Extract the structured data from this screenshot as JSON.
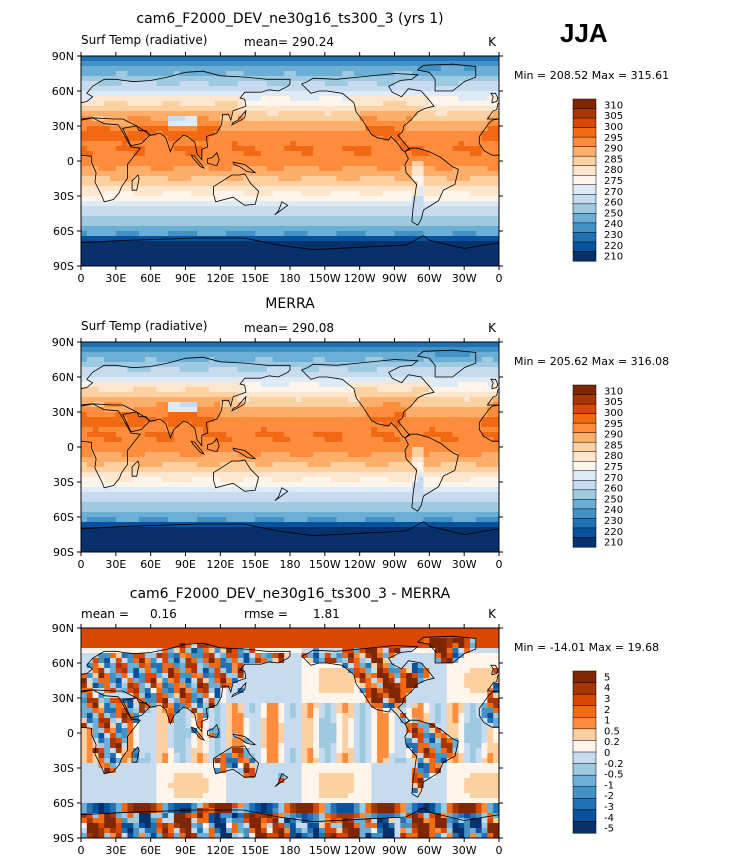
{
  "season": "JJA",
  "colors": {
    "abs_scale": [
      "#08306b",
      "#08519c",
      "#2171b5",
      "#4292c6",
      "#6baed6",
      "#9ecae1",
      "#c6dbef",
      "#deebf7",
      "#fff5eb",
      "#fee6ce",
      "#fdd0a2",
      "#fdae6b",
      "#fd8d3c",
      "#f16913",
      "#d94801",
      "#a63603",
      "#7f2704"
    ],
    "diff_scale": [
      "#08306b",
      "#08519c",
      "#2171b5",
      "#4292c6",
      "#6baed6",
      "#9ecae1",
      "#c6dbef",
      "#fff5eb",
      "#fdd0a2",
      "#fd8d3c",
      "#f16913",
      "#d94801",
      "#a63603",
      "#7f2704"
    ]
  },
  "chart_data": [
    {
      "type": "heatmap",
      "title": "cam6_F2000_DEV_ne30g16_ts300_3 (yrs 1)",
      "variable": "Surf Temp (radiative)",
      "mean_label": "mean=",
      "mean_value": "290.24",
      "units": "K",
      "minmax": "Min = 208.52 Max = 315.61",
      "xticks": [
        "0",
        "30E",
        "60E",
        "90E",
        "120E",
        "150E",
        "180",
        "150W",
        "120W",
        "90W",
        "60W",
        "30W",
        "0"
      ],
      "yticks": [
        "90N",
        "60N",
        "30N",
        "0",
        "30S",
        "60S",
        "90S"
      ],
      "levels": [
        "310",
        "305",
        "300",
        "295",
        "290",
        "285",
        "280",
        "275",
        "270",
        "260",
        "250",
        "240",
        "230",
        "220",
        "210"
      ],
      "scale": "abs"
    },
    {
      "type": "heatmap",
      "title": "MERRA",
      "variable": "Surf Temp (radiative)",
      "mean_label": "mean=",
      "mean_value": "290.08",
      "units": "K",
      "minmax": "Min = 205.62 Max = 316.08",
      "xticks": [
        "0",
        "30E",
        "60E",
        "90E",
        "120E",
        "150E",
        "180",
        "150W",
        "120W",
        "90W",
        "60W",
        "30W",
        "0"
      ],
      "yticks": [
        "90N",
        "60N",
        "30N",
        "0",
        "30S",
        "60S",
        "90S"
      ],
      "levels": [
        "310",
        "305",
        "300",
        "295",
        "290",
        "285",
        "280",
        "275",
        "270",
        "260",
        "250",
        "240",
        "230",
        "220",
        "210"
      ],
      "scale": "abs"
    },
    {
      "type": "heatmap",
      "title": "cam6_F2000_DEV_ne30g16_ts300_3 - MERRA",
      "mean_label": "mean =",
      "mean_value": "0.16",
      "rmse_label": "rmse =",
      "rmse_value": "1.81",
      "units": "K",
      "minmax": "Min = -14.01 Max =  19.68",
      "xticks": [
        "0",
        "30E",
        "60E",
        "90E",
        "120E",
        "150E",
        "180",
        "150W",
        "120W",
        "90W",
        "60W",
        "30W",
        "0"
      ],
      "yticks": [
        "90N",
        "60N",
        "30N",
        "0",
        "30S",
        "60S",
        "90S"
      ],
      "levels": [
        "5",
        "4",
        "3",
        "2",
        "1",
        "0.5",
        "0.2",
        "0",
        "-0.2",
        "-0.5",
        "-1",
        "-2",
        "-3",
        "-4",
        "-5"
      ],
      "scale": "diff"
    }
  ]
}
